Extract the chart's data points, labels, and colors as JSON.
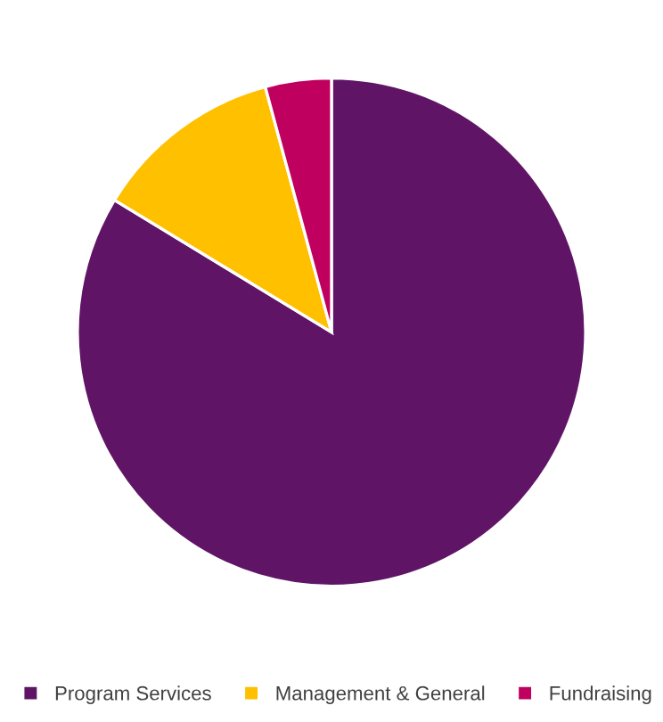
{
  "chart_data": {
    "type": "pie",
    "categories": [
      "Program Services",
      "Management & General",
      "Fundraising"
    ],
    "values": [
      83.7,
      12.1,
      4.2
    ],
    "colors": [
      "#5f1466",
      "#ffc000",
      "#c0005f"
    ],
    "legend": "bottom"
  }
}
